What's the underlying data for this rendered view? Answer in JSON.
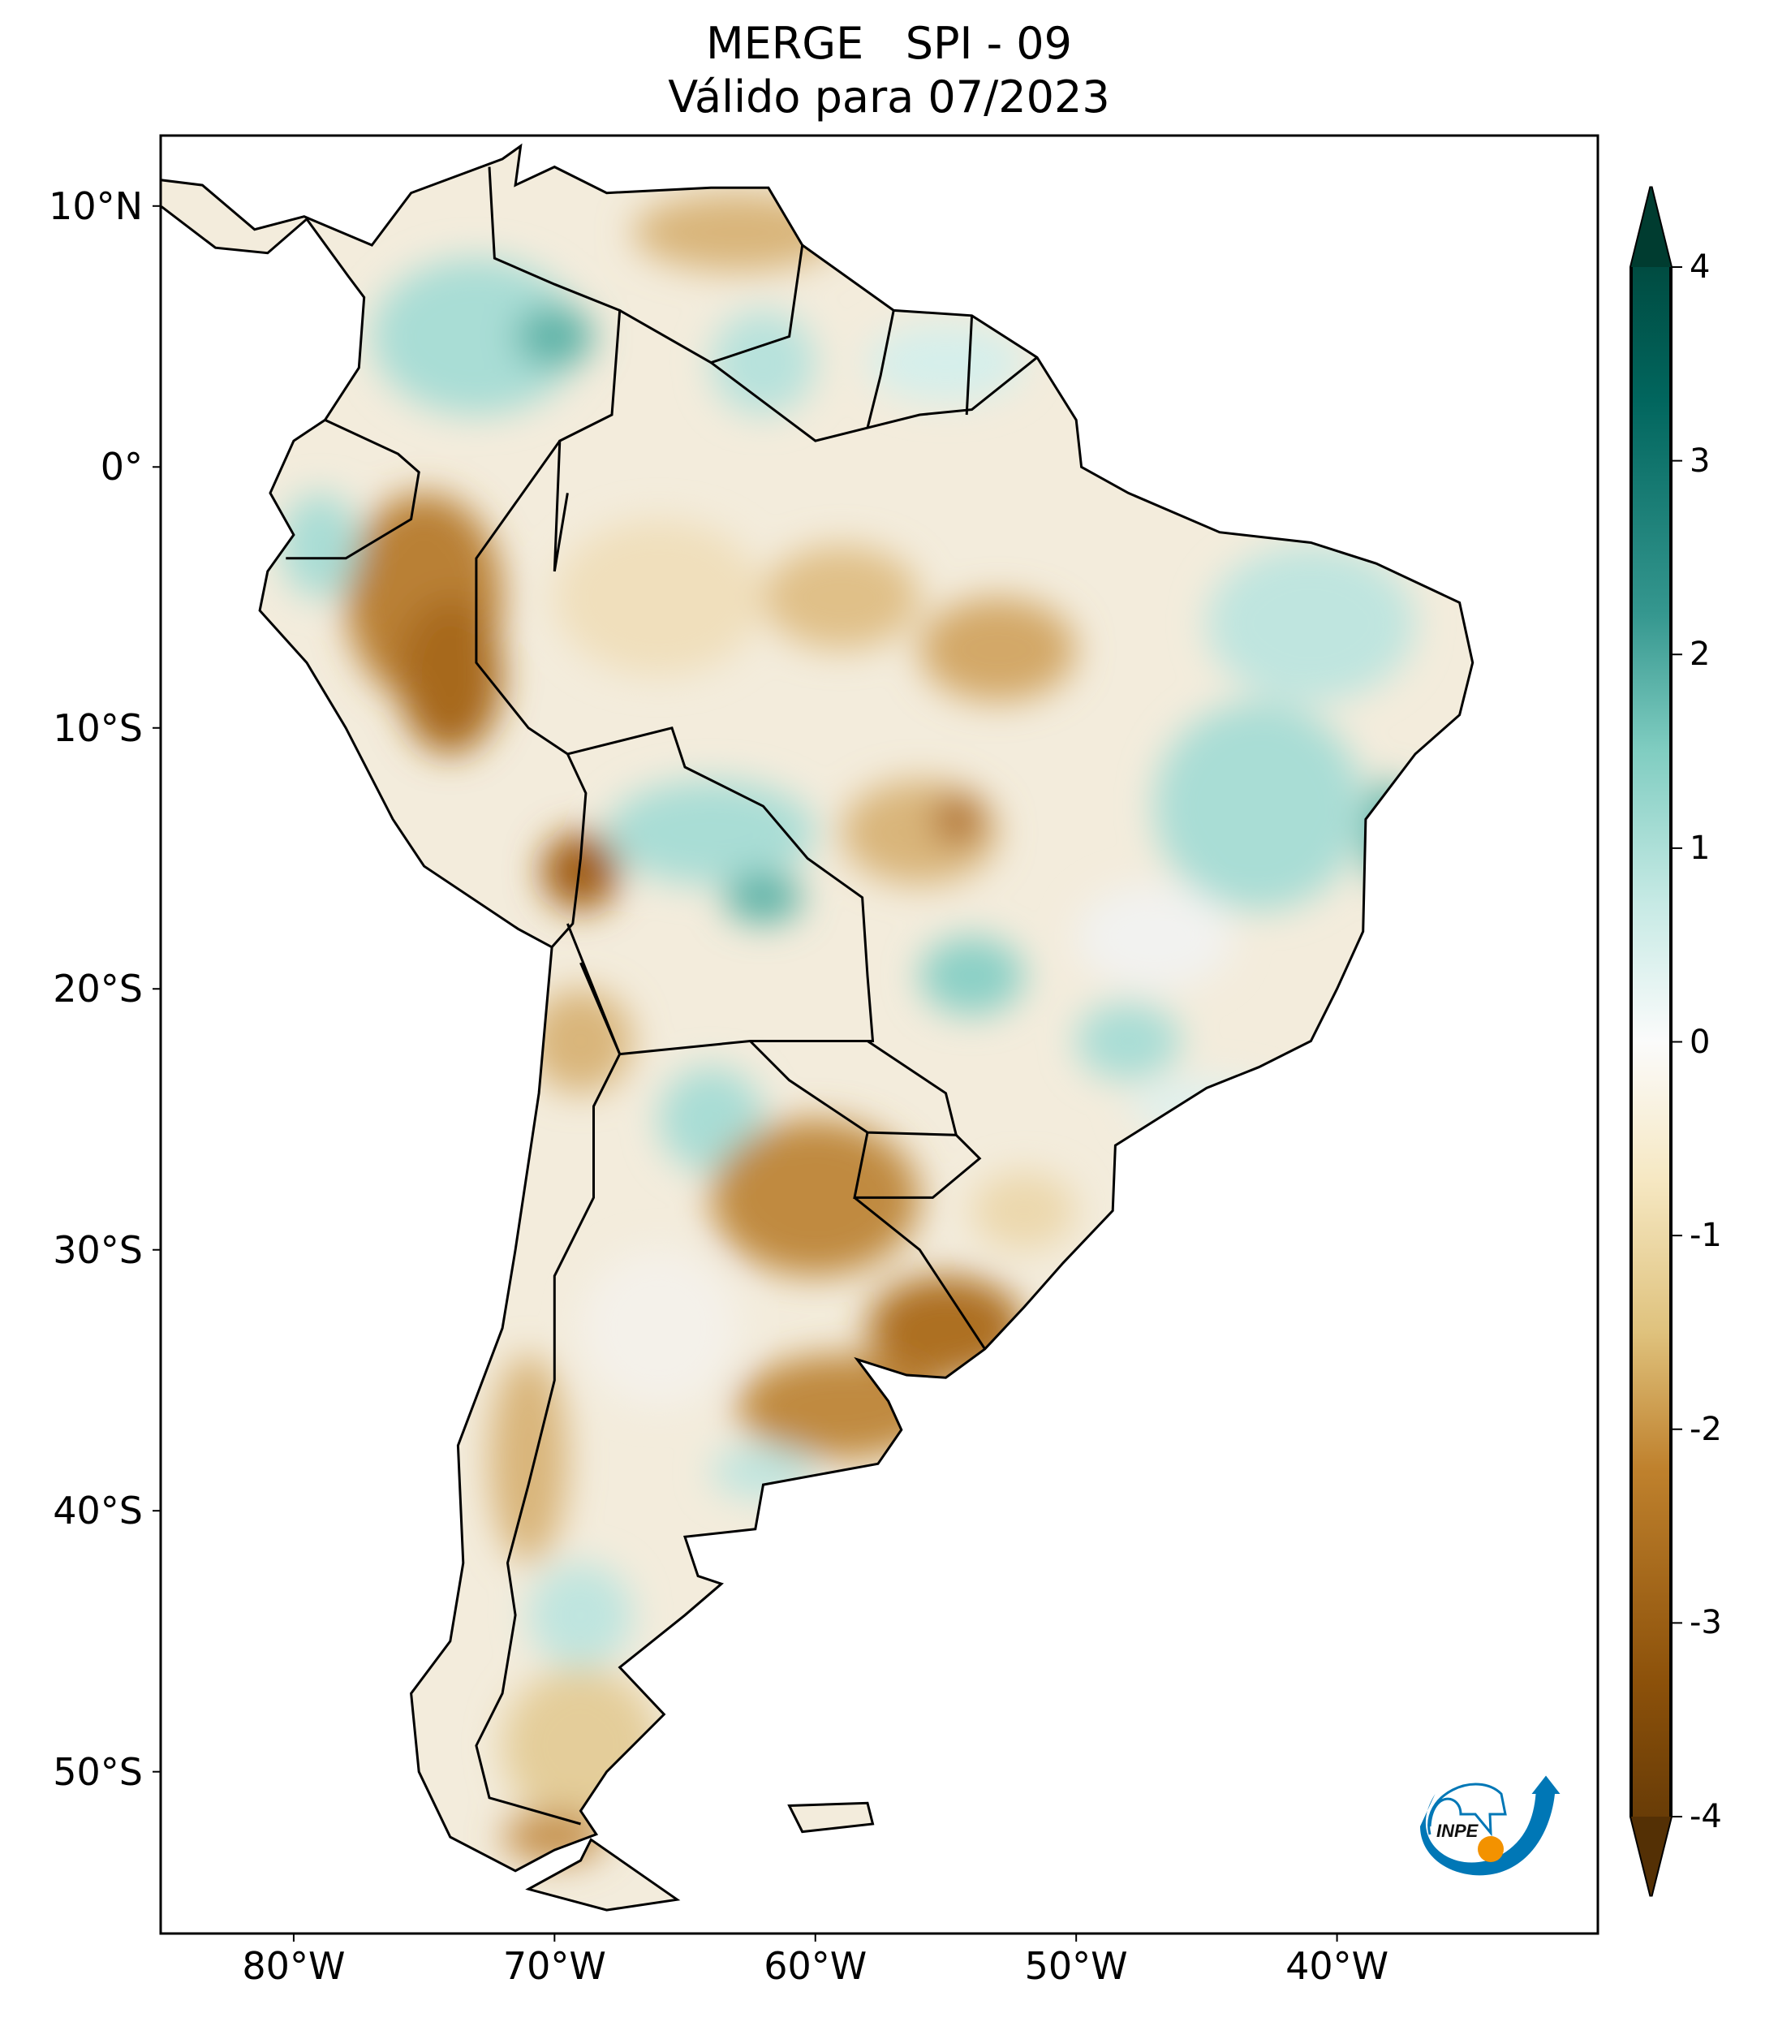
{
  "title": {
    "line1": "MERGE   SPI - 09",
    "line2": "Válido para 07/2023"
  },
  "axes": {
    "lat_labels": [
      {
        "text": "10°N",
        "lat": 10
      },
      {
        "text": "0°",
        "lat": 0
      },
      {
        "text": "10°S",
        "lat": -10
      },
      {
        "text": "20°S",
        "lat": -20
      },
      {
        "text": "30°S",
        "lat": -30
      },
      {
        "text": "40°S",
        "lat": -40
      },
      {
        "text": "50°S",
        "lat": -50
      }
    ],
    "lon_labels": [
      {
        "text": "80°W",
        "lon": -80
      },
      {
        "text": "70°W",
        "lon": -70
      },
      {
        "text": "60°W",
        "lon": -60
      },
      {
        "text": "50°W",
        "lon": -50
      },
      {
        "text": "40°W",
        "lon": -40
      }
    ],
    "lon_range": [
      -85.1,
      -30
    ],
    "lat_range": [
      -56.2,
      12.7
    ]
  },
  "colorbar": {
    "ticks": [
      "4",
      "3",
      "2",
      "1",
      "0",
      "-1",
      "-2",
      "-3",
      "-4"
    ],
    "range": [
      -4,
      4
    ],
    "colors": [
      "#543005",
      "#8c510a",
      "#bf812d",
      "#dfc27d",
      "#f6e8c3",
      "#f5f5f5",
      "#c7eae5",
      "#80cdc1",
      "#35978f",
      "#01665e",
      "#003c30"
    ]
  },
  "logo": {
    "text": "INPE",
    "blue": "#0077b6",
    "orange": "#f39200"
  }
}
